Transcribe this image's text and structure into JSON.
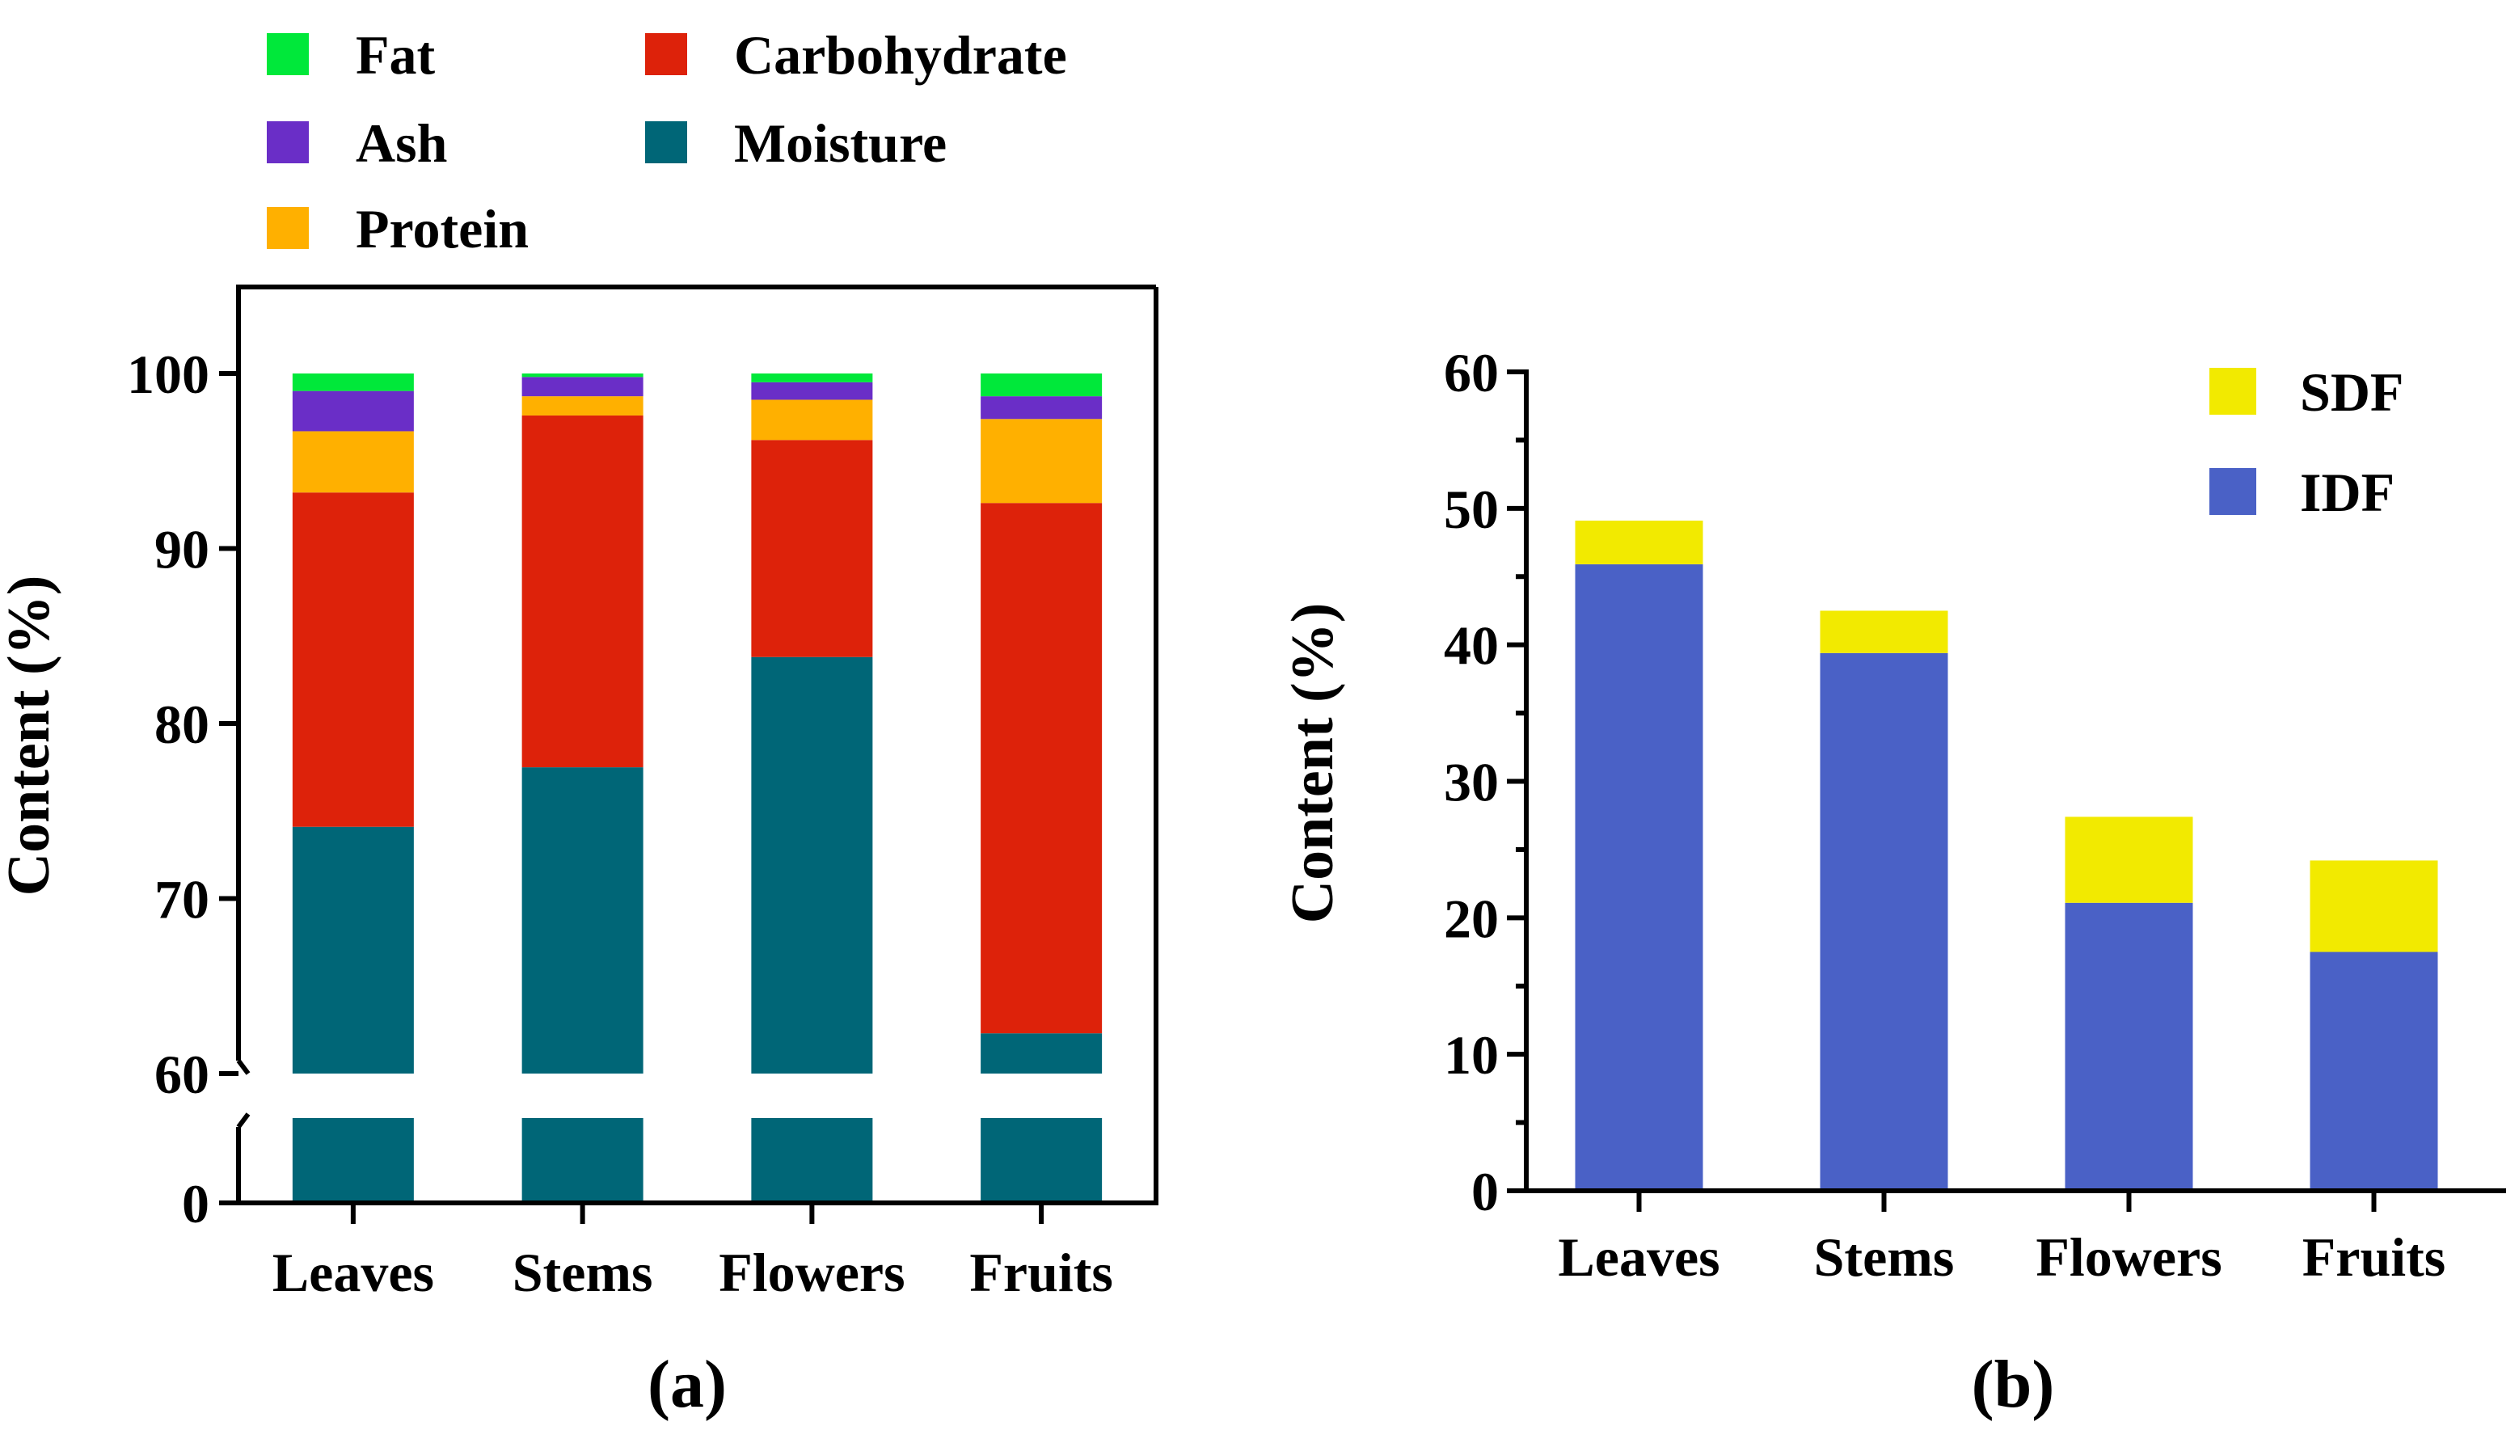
{
  "chart_data": [
    {
      "type": "bar",
      "stacked": true,
      "panel_label": "(a)",
      "title": "",
      "xlabel": "",
      "ylabel": "Content (%)",
      "categories": [
        "Leaves",
        "Stems",
        "Flowers",
        "Fruits"
      ],
      "ylim": [
        0,
        100
      ],
      "axis_break": {
        "lower": [
          0,
          5
        ],
        "upper": [
          60,
          100
        ]
      },
      "yticks": [
        0,
        60,
        70,
        80,
        90,
        100
      ],
      "grid": false,
      "legend_position": "top-left",
      "legend_order": [
        "Fat",
        "Carbohydrate",
        "Ash",
        "Moisture",
        "Protein"
      ],
      "series": [
        {
          "name": "Moisture",
          "color": "#006677",
          "values": [
            74.1,
            77.5,
            83.8,
            62.3
          ]
        },
        {
          "name": "Carbohydrate",
          "color": "#DD220A",
          "values": [
            19.1,
            20.1,
            12.4,
            30.3
          ]
        },
        {
          "name": "Protein",
          "color": "#FFB000",
          "values": [
            3.5,
            1.1,
            2.3,
            4.8
          ]
        },
        {
          "name": "Ash",
          "color": "#6A2EC7",
          "values": [
            2.3,
            1.1,
            1.0,
            1.3
          ]
        },
        {
          "name": "Fat",
          "color": "#00E83A",
          "values": [
            1.0,
            0.2,
            0.5,
            1.3
          ]
        }
      ]
    },
    {
      "type": "bar",
      "stacked": true,
      "panel_label": "(b)",
      "title": "",
      "xlabel": "",
      "ylabel": "Content (%)",
      "categories": [
        "Leaves",
        "Stems",
        "Flowers",
        "Fruits"
      ],
      "ylim": [
        0,
        60
      ],
      "yticks": [
        0,
        10,
        20,
        30,
        40,
        50,
        60
      ],
      "grid": false,
      "legend_position": "top-right",
      "legend_order": [
        "SDF",
        "IDF"
      ],
      "series": [
        {
          "name": "IDF",
          "color": "#4A61C6",
          "values": [
            45.9,
            39.4,
            21.1,
            17.5
          ]
        },
        {
          "name": "SDF",
          "color": "#F2EA00",
          "values": [
            3.2,
            3.1,
            6.3,
            6.7
          ]
        }
      ]
    }
  ]
}
